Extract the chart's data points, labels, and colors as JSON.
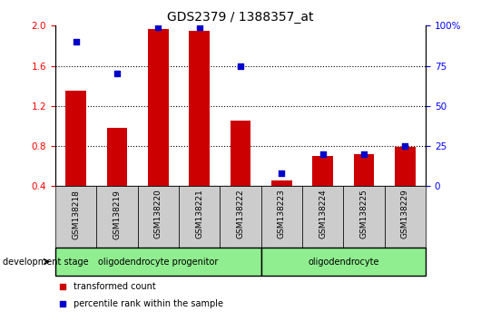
{
  "title": "GDS2379 / 1388357_at",
  "samples": [
    "GSM138218",
    "GSM138219",
    "GSM138220",
    "GSM138221",
    "GSM138222",
    "GSM138223",
    "GSM138224",
    "GSM138225",
    "GSM138229"
  ],
  "red_values": [
    1.35,
    0.98,
    1.97,
    1.95,
    1.05,
    0.46,
    0.7,
    0.72,
    0.79
  ],
  "blue_values": [
    90,
    70,
    99,
    99,
    75,
    8,
    20,
    20,
    25
  ],
  "ylim_left": [
    0.4,
    2.0
  ],
  "ylim_right": [
    0,
    100
  ],
  "yticks_left": [
    0.4,
    0.8,
    1.2,
    1.6,
    2.0
  ],
  "yticks_right": [
    0,
    25,
    50,
    75,
    100
  ],
  "yticklabels_right": [
    "0",
    "25",
    "50",
    "75",
    "100%"
  ],
  "bar_color": "#CC0000",
  "dot_color": "#0000CC",
  "bar_width": 0.5,
  "dot_size": 18,
  "xtick_bg": "#CCCCCC",
  "group1_label": "oligodendrocyte progenitor",
  "group1_samples": 5,
  "group2_label": "oligodendrocyte",
  "group2_samples": 4,
  "group_color": "#90EE90",
  "dev_stage_label": "development stage",
  "legend1": "transformed count",
  "legend2": "percentile rank within the sample",
  "dotted_lines": [
    0.8,
    1.2,
    1.6
  ],
  "left_axis_color": "red",
  "right_axis_color": "blue"
}
